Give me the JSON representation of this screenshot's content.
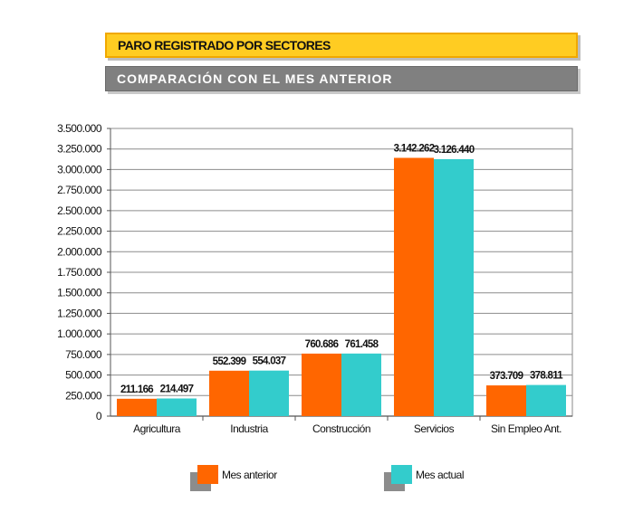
{
  "header": {
    "title": "PARO REGISTRADO POR SECTORES",
    "subtitle": "COMPARACIÓN CON EL MES ANTERIOR"
  },
  "colors": {
    "title_bg": "#FFCC22",
    "subtitle_bg": "#808080",
    "series_previous": "#FF6600",
    "series_current": "#33CCCC"
  },
  "chart_data": {
    "type": "bar",
    "categories": [
      "Agricultura",
      "Industria",
      "Construcción",
      "Servicios",
      "Sin Empleo Ant."
    ],
    "series": [
      {
        "name": "Mes anterior",
        "values": [
          211166,
          552399,
          760686,
          3142262,
          373709
        ],
        "labels": [
          "211.166",
          "552.399",
          "760.686",
          "3.142.262",
          "373.709"
        ]
      },
      {
        "name": "Mes actual",
        "values": [
          214497,
          554037,
          761458,
          3126440,
          378811
        ],
        "labels": [
          "214.497",
          "554.037",
          "761.458",
          "3.126.440",
          "378.811"
        ]
      }
    ],
    "ylim": [
      0,
      3500000
    ],
    "ytick_values": [
      0,
      250000,
      500000,
      750000,
      1000000,
      1250000,
      1500000,
      1750000,
      2000000,
      2250000,
      2500000,
      2750000,
      3000000,
      3250000,
      3500000
    ],
    "ytick_labels": [
      "0",
      "250.000",
      "500.000",
      "750.000",
      "1.000.000",
      "1.250.000",
      "1.500.000",
      "1.750.000",
      "2.000.000",
      "2.250.000",
      "2.500.000",
      "2.750.000",
      "3.000.000",
      "3.250.000",
      "3.500.000"
    ],
    "grid": true,
    "legend_position": "bottom"
  }
}
